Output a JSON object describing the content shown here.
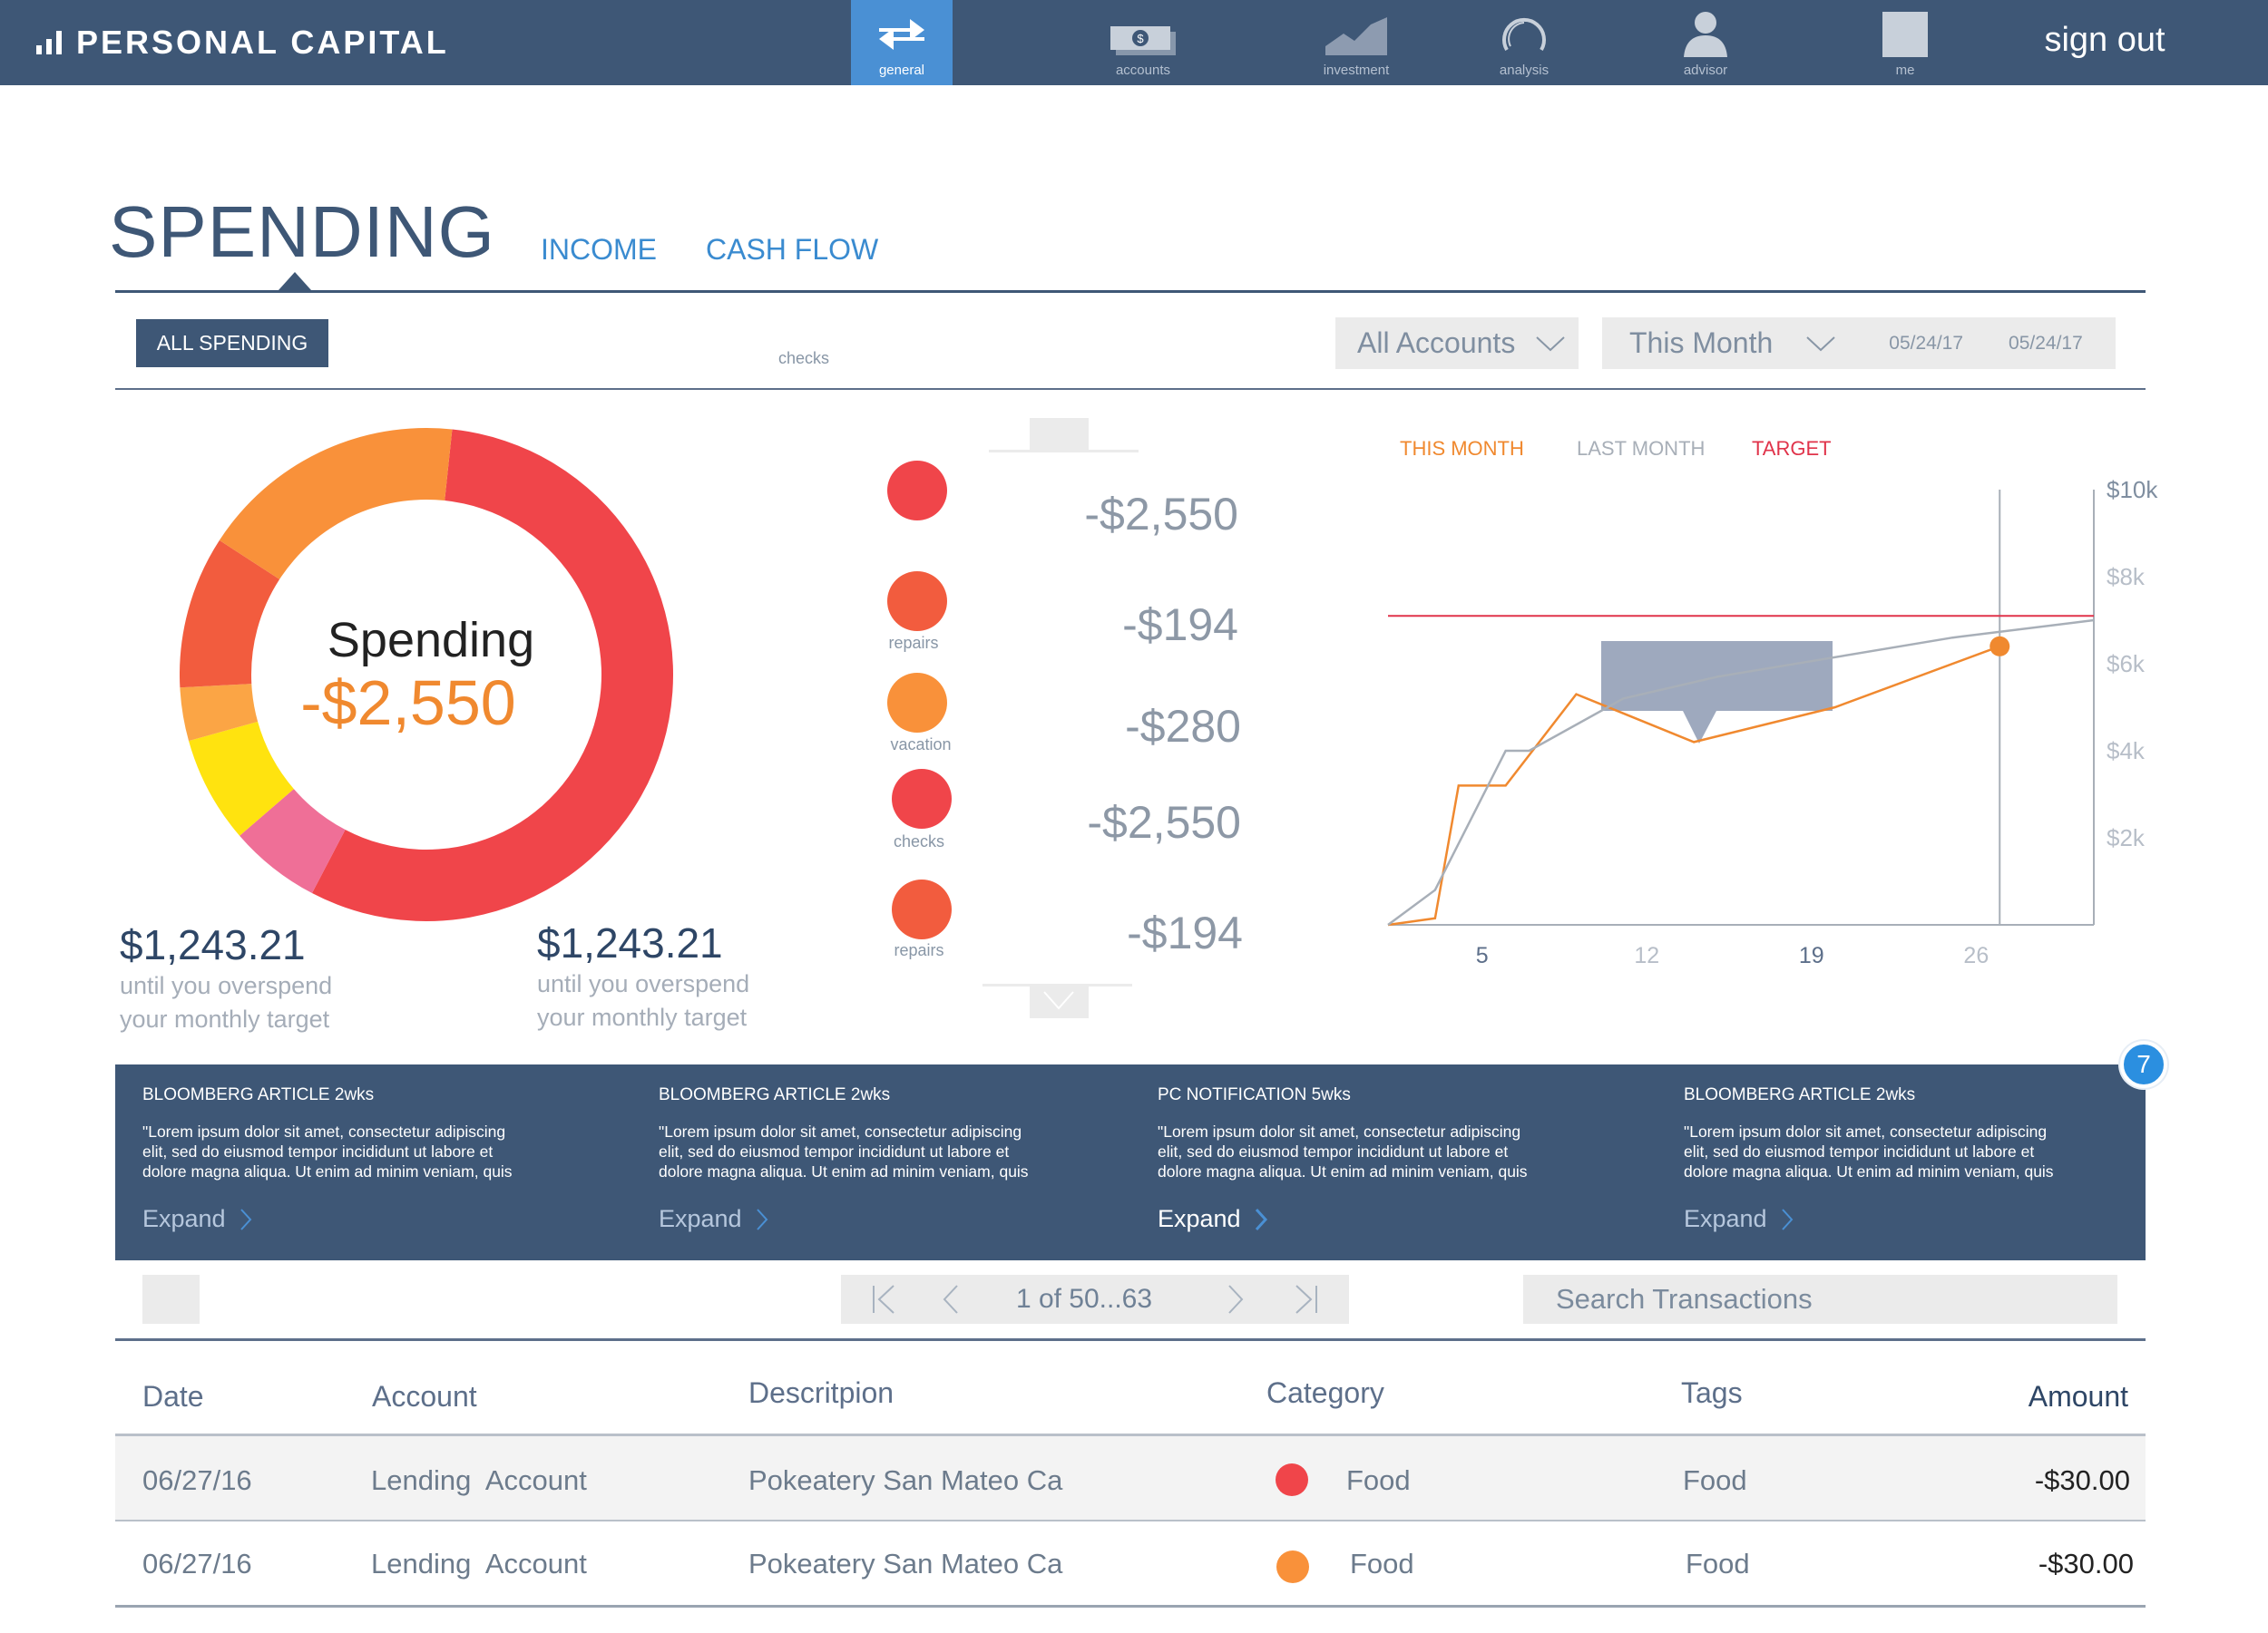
{
  "brand": {
    "name": "PERSONAL CAPITAL"
  },
  "nav": {
    "items": [
      {
        "label": "general",
        "icon": "transfer-arrows-icon",
        "active": true
      },
      {
        "label": "accounts",
        "icon": "cash-icon"
      },
      {
        "label": "investment",
        "icon": "area-chart-icon"
      },
      {
        "label": "analysis",
        "icon": "gauge-icon"
      },
      {
        "label": "advisor",
        "icon": "person-icon"
      },
      {
        "label": "me",
        "icon": "square-avatar-icon"
      }
    ],
    "signout": "sign out"
  },
  "section": {
    "title": "SPENDING",
    "tabs": [
      "INCOME",
      "CASH FLOW"
    ]
  },
  "filters": {
    "all_spending": "ALL SPENDING",
    "checks_label": "checks",
    "accounts_dropdown": "All Accounts",
    "period_dropdown": "This Month",
    "date_from": "05/24/17",
    "date_to": "05/24/17"
  },
  "donut": {
    "title": "Spending",
    "value": "-$2,550",
    "segments": [
      {
        "color": "#f0454a",
        "fraction": 0.56
      },
      {
        "color": "#ef6f97",
        "fraction": 0.06
      },
      {
        "color": "#ffe30f",
        "fraction": 0.07
      },
      {
        "color": "#fba545",
        "fraction": 0.035
      },
      {
        "color": "#f25c3e",
        "fraction": 0.1
      },
      {
        "color": "#f9913a",
        "fraction": 0.175
      }
    ]
  },
  "targets": [
    {
      "amount": "$1,243.21",
      "note_line1": "until you overspend",
      "note_line2": "your monthly target"
    },
    {
      "amount": "$1,243.21",
      "note_line1": "until you overspend",
      "note_line2": "your monthly target"
    }
  ],
  "categories": [
    {
      "label": "",
      "amount": "-$2,550",
      "color": "#f0454a"
    },
    {
      "label": "repairs",
      "amount": "-$194",
      "color": "#f25c3e"
    },
    {
      "label": "vacation",
      "amount": "-$280",
      "color": "#f9913a"
    },
    {
      "label": "checks",
      "amount": "-$2,550",
      "color": "#f0454a"
    },
    {
      "label": "repairs",
      "amount": "-$194",
      "color": "#f25c3e"
    }
  ],
  "chart": {
    "legend": [
      {
        "label": "THIS MONTH",
        "color": "#f0892f"
      },
      {
        "label": "LAST MONTH",
        "color": "#a8afb8"
      },
      {
        "label": "TARGET",
        "color": "#e0334a"
      }
    ],
    "y_ticks": [
      "$10k",
      "$8k",
      "$6k",
      "$4k",
      "$2k"
    ],
    "x_ticks": [
      "5",
      "12",
      "19",
      "26"
    ]
  },
  "chart_data": {
    "type": "line",
    "xlim": [
      1,
      31
    ],
    "ylim": [
      0,
      10000
    ],
    "series": [
      {
        "name": "THIS MONTH",
        "color": "#f0892f",
        "x": [
          1,
          3,
          4,
          6,
          9,
          14,
          20,
          27
        ],
        "y": [
          0,
          150,
          3200,
          3200,
          5300,
          4200,
          5000,
          6400
        ]
      },
      {
        "name": "LAST MONTH",
        "color": "#a8afb8",
        "x": [
          1,
          3,
          6,
          7,
          11,
          15,
          25,
          31
        ],
        "y": [
          0,
          800,
          4000,
          4000,
          5200,
          5700,
          6600,
          7000
        ]
      },
      {
        "name": "TARGET",
        "color": "#e0334a",
        "x": [
          1,
          31
        ],
        "y": [
          7100,
          7100
        ]
      }
    ],
    "marker": {
      "x": 27,
      "y": 6400
    }
  },
  "news": {
    "badge_count": "7",
    "items": [
      {
        "source": "BLOOMBERG ARTICLE 2wks",
        "line1": "\"Lorem ipsum dolor sit amet, consectetur adipiscing",
        "line2": "elit, sed do eiusmod tempor incididunt ut labore et",
        "line3": "dolore magna aliqua. Ut enim ad minim veniam, quis",
        "expand": "Expand"
      },
      {
        "source": "BLOOMBERG ARTICLE 2wks",
        "line1": "\"Lorem ipsum dolor sit amet, consectetur adipiscing",
        "line2": "elit, sed do eiusmod tempor incididunt ut labore et",
        "line3": "dolore magna aliqua. Ut enim ad minim veniam, quis",
        "expand": "Expand"
      },
      {
        "source": "PC NOTIFICATION 5wks",
        "line1": "\"Lorem ipsum dolor sit amet, consectetur adipiscing",
        "line2": "elit, sed do eiusmod tempor incididunt ut labore et",
        "line3": "dolore magna aliqua. Ut enim ad minim veniam, quis",
        "expand": "Expand"
      },
      {
        "source": "BLOOMBERG ARTICLE 2wks",
        "line1": "\"Lorem ipsum dolor sit amet, consectetur adipiscing",
        "line2": "elit, sed do eiusmod tempor incididunt ut labore et",
        "line3": "dolore magna aliqua. Ut enim ad minim veniam, quis",
        "expand": "Expand"
      }
    ]
  },
  "pagination": {
    "text": "1 of 50...63"
  },
  "search": {
    "placeholder": "Search Transactions"
  },
  "table": {
    "headers": {
      "date": "Date",
      "account": "Account",
      "description": "Descritpion",
      "category": "Category",
      "tags": "Tags",
      "amount": "Amount"
    },
    "rows": [
      {
        "date": "06/27/16",
        "account": "Lending  Account",
        "description": "Pokeatery San Mateo Ca",
        "category": "Food",
        "category_color": "#f0454a",
        "tags": "Food",
        "amount": "-$30.00"
      },
      {
        "date": "06/27/16",
        "account": "Lending  Account",
        "description": "Pokeatery San Mateo Ca",
        "category": "Food",
        "category_color": "#f9913a",
        "tags": "Food",
        "amount": "-$30.00"
      }
    ]
  }
}
